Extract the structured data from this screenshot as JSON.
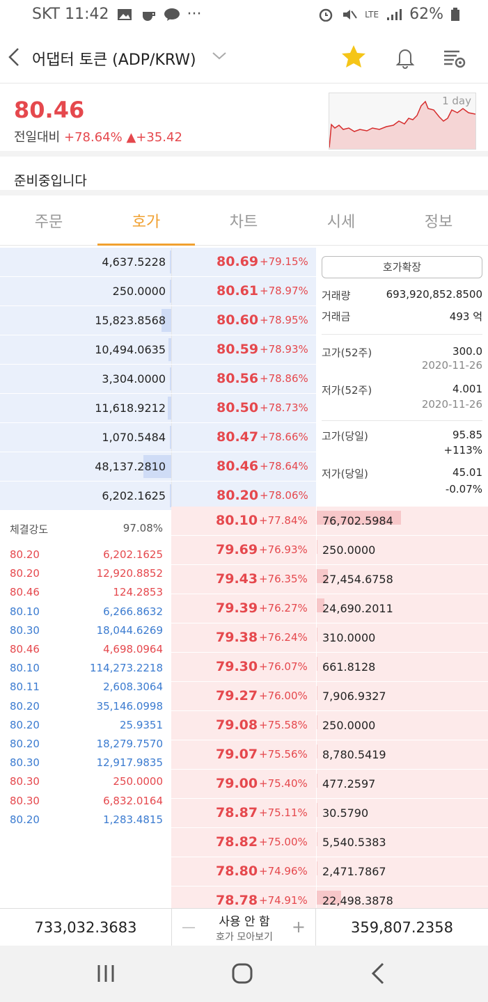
{
  "status": {
    "carrier_time": "SKT 11:42",
    "network": "LTE",
    "battery": "62%"
  },
  "header": {
    "title": "어댑터 토큰 (ADP/KRW)"
  },
  "price": {
    "current": "80.46",
    "change_label": "전일대비",
    "change_pct": "+78.64%",
    "change_abs": "▲+35.42",
    "chart_label": "1 day"
  },
  "notice": "준비중입니다",
  "tabs": [
    {
      "label": "주문"
    },
    {
      "label": "호가"
    },
    {
      "label": "차트"
    },
    {
      "label": "시세"
    },
    {
      "label": "정보"
    }
  ],
  "asks": [
    {
      "qty": "4,637.5228",
      "price": "80.69",
      "pct": "+79.15%",
      "bar": 0.01
    },
    {
      "qty": "250.0000",
      "price": "80.61",
      "pct": "+78.97%",
      "bar": 0.0
    },
    {
      "qty": "15,823.8568",
      "price": "80.60",
      "pct": "+78.95%",
      "bar": 0.12
    },
    {
      "qty": "10,494.0635",
      "price": "80.59",
      "pct": "+78.93%",
      "bar": 0.03
    },
    {
      "qty": "3,304.0000",
      "price": "80.56",
      "pct": "+78.86%",
      "bar": 0.01
    },
    {
      "qty": "11,618.9212",
      "price": "80.50",
      "pct": "+78.73%",
      "bar": 0.04
    },
    {
      "qty": "1,070.5484",
      "price": "80.47",
      "pct": "+78.66%",
      "bar": 0.005
    },
    {
      "qty": "48,137.2810",
      "price": "80.46",
      "pct": "+78.64%",
      "bar": 0.33
    },
    {
      "qty": "6,202.1625",
      "price": "80.20",
      "pct": "+78.06%",
      "bar": 0.02
    }
  ],
  "info": {
    "expand_btn": "호가확장",
    "volume_label": "거래량",
    "volume": "693,920,852.8500",
    "amount_label": "거래금",
    "amount": "493 억",
    "high52_label": "고가(52주)",
    "high52": "300.0",
    "high52_date": "2020-11-26",
    "low52_label": "저가(52주)",
    "low52": "4.001",
    "low52_date": "2020-11-26",
    "high_today_label": "고가(당일)",
    "high_today": "95.85",
    "high_today_pct": "+113%",
    "low_today_label": "저가(당일)",
    "low_today": "45.01",
    "low_today_pct": "-0.07%"
  },
  "trades": {
    "strength_label": "체결강도",
    "strength": "97.08%",
    "rows": [
      {
        "price": "80.20",
        "qty": "6,202.1625",
        "side": "red"
      },
      {
        "price": "80.20",
        "qty": "12,920.8852",
        "side": "red"
      },
      {
        "price": "80.46",
        "qty": "124.2853",
        "side": "red"
      },
      {
        "price": "80.10",
        "qty": "6,266.8632",
        "side": "blue"
      },
      {
        "price": "80.30",
        "qty": "18,044.6269",
        "side": "blue"
      },
      {
        "price": "80.46",
        "qty": "4,698.0964",
        "side": "red"
      },
      {
        "price": "80.10",
        "qty": "114,273.2218",
        "side": "blue"
      },
      {
        "price": "80.11",
        "qty": "2,608.3064",
        "side": "blue"
      },
      {
        "price": "80.20",
        "qty": "35,146.0998",
        "side": "blue"
      },
      {
        "price": "80.20",
        "qty": "25.9351",
        "side": "blue"
      },
      {
        "price": "80.20",
        "qty": "18,279.7570",
        "side": "blue"
      },
      {
        "price": "80.30",
        "qty": "12,917.9835",
        "side": "blue"
      },
      {
        "price": "80.30",
        "qty": "250.0000",
        "side": "red"
      },
      {
        "price": "80.30",
        "qty": "6,832.0164",
        "side": "red"
      },
      {
        "price": "80.20",
        "qty": "1,283.4815",
        "side": "blue"
      }
    ]
  },
  "bids": [
    {
      "price": "80.10",
      "pct": "+77.84%",
      "qty": "76,702.5984",
      "bar": 0.51
    },
    {
      "price": "79.69",
      "pct": "+76.93%",
      "qty": "250.0000",
      "bar": 0.0
    },
    {
      "price": "79.43",
      "pct": "+76.35%",
      "qty": "27,454.6758",
      "bar": 0.07
    },
    {
      "price": "79.39",
      "pct": "+76.27%",
      "qty": "24,690.2011",
      "bar": 0.05
    },
    {
      "price": "79.38",
      "pct": "+76.24%",
      "qty": "310.0000",
      "bar": 0.0
    },
    {
      "price": "79.30",
      "pct": "+76.07%",
      "qty": "661.8128",
      "bar": 0.005
    },
    {
      "price": "79.27",
      "pct": "+76.00%",
      "qty": "7,906.9327",
      "bar": 0.01
    },
    {
      "price": "79.08",
      "pct": "+75.58%",
      "qty": "250.0000",
      "bar": 0.0
    },
    {
      "price": "79.07",
      "pct": "+75.56%",
      "qty": "8,780.5419",
      "bar": 0.01
    },
    {
      "price": "79.00",
      "pct": "+75.40%",
      "qty": "477.2597",
      "bar": 0.0
    },
    {
      "price": "78.87",
      "pct": "+75.11%",
      "qty": "30.5790",
      "bar": 0.0
    },
    {
      "price": "78.82",
      "pct": "+75.00%",
      "qty": "5,540.5383",
      "bar": 0.01
    },
    {
      "price": "78.80",
      "pct": "+74.96%",
      "qty": "2,471.7867",
      "bar": 0.005
    },
    {
      "price": "78.78",
      "pct": "+74.91%",
      "qty": "22,498.3878",
      "bar": 0.15
    }
  ],
  "footer": {
    "ask_total": "733,032.3683",
    "mode": "사용 안 함",
    "mode_sub": "호가 모아보기",
    "bid_total": "359,807.2358"
  }
}
